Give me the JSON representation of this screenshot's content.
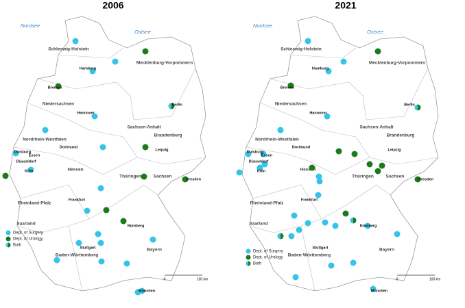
{
  "panels": [
    {
      "title": "2006"
    },
    {
      "title": "2021"
    }
  ],
  "seas": [
    "Nordsee",
    "Ostsee"
  ],
  "states": [
    "Schleswig-Holstein",
    "Mecklenburg-Vorpommern",
    "Niedersachsen",
    "Brandenburg",
    "Sachsen-Anhalt",
    "Nordrhein-Westfalen",
    "Sachsen",
    "Thüringen",
    "Hessen",
    "Rheinland-Pfalz",
    "Saarland",
    "Baden-Württemberg",
    "Bayern"
  ],
  "cities": [
    "Hamburg",
    "Bremen",
    "Hannover",
    "Berlin",
    "Dortmund",
    "Duisburg",
    "Essen",
    "Düsseldorf",
    "Köln",
    "Leipzig",
    "Dresden",
    "Frankfurt",
    "Nürnberg",
    "Stuttgart",
    "München"
  ],
  "legend": [
    {
      "label": "Dept. of Surgery",
      "color": "#35c3e9"
    },
    {
      "label": "Dept. of Urology",
      "color": "#1b7b1b"
    },
    {
      "label": "Both"
    }
  ],
  "scale": {
    "start": "0",
    "end": "100 km"
  }
}
